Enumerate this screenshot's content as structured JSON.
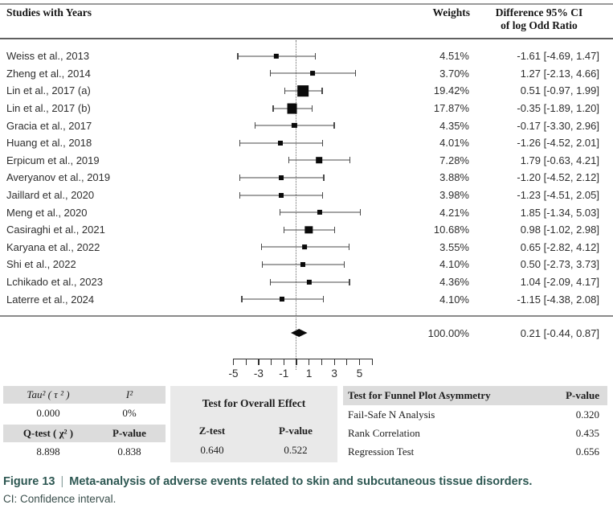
{
  "header": {
    "studies_col": "Studies with Years",
    "weights_col": "Weights",
    "diff_col_line1": "Difference 95% CI",
    "diff_col_line2": "of log Odd Ratio"
  },
  "chart_data": {
    "type": "forest",
    "effect_measure": "Difference of log Odd Ratio",
    "x_axis": {
      "min": -5,
      "max": 6,
      "tick_step": 1,
      "labeled_ticks": [
        -5,
        -3,
        -1,
        1,
        3,
        5
      ],
      "zero_reference_line": 0
    },
    "studies": [
      {
        "name": "Weiss et  al., 2013",
        "weight_pct": 4.51,
        "weight": "4.51%",
        "estimate": -1.61,
        "ci_low": -4.69,
        "ci_high": 1.47,
        "ci_label": "-1.61 [-4.69, 1.47]"
      },
      {
        "name": "Zheng et al., 2014",
        "weight_pct": 3.7,
        "weight": "3.70%",
        "estimate": 1.27,
        "ci_low": -2.13,
        "ci_high": 4.66,
        "ci_label": "1.27 [-2.13, 4.66]"
      },
      {
        "name": "Lin et al., 2017 (a)",
        "weight_pct": 19.42,
        "weight": "19.42%",
        "estimate": 0.51,
        "ci_low": -0.97,
        "ci_high": 1.99,
        "ci_label": "0.51 [-0.97, 1.99]"
      },
      {
        "name": "Lin et al., 2017 (b)",
        "weight_pct": 17.87,
        "weight": "17.87%",
        "estimate": -0.35,
        "ci_low": -1.89,
        "ci_high": 1.2,
        "ci_label": "-0.35 [-1.89, 1.20]"
      },
      {
        "name": "Gracia et al., 2017",
        "weight_pct": 4.35,
        "weight": "4.35%",
        "estimate": -0.17,
        "ci_low": -3.3,
        "ci_high": 2.96,
        "ci_label": "-0.17 [-3.30, 2.96]"
      },
      {
        "name": "Huang et al., 2018",
        "weight_pct": 4.01,
        "weight": "4.01%",
        "estimate": -1.26,
        "ci_low": -4.52,
        "ci_high": 2.01,
        "ci_label": "-1.26 [-4.52, 2.01]"
      },
      {
        "name": "Erpicum et al., 2019",
        "weight_pct": 7.28,
        "weight": "7.28%",
        "estimate": 1.79,
        "ci_low": -0.63,
        "ci_high": 4.21,
        "ci_label": "1.79 [-0.63, 4.21]"
      },
      {
        "name": "Averyanov et al., 2019",
        "weight_pct": 3.88,
        "weight": "3.88%",
        "estimate": -1.2,
        "ci_low": -4.52,
        "ci_high": 2.12,
        "ci_label": "-1.20 [-4.52, 2.12]"
      },
      {
        "name": "Jaillard et al., 2020",
        "weight_pct": 3.98,
        "weight": "3.98%",
        "estimate": -1.23,
        "ci_low": -4.51,
        "ci_high": 2.05,
        "ci_label": "-1.23 [-4.51, 2.05]"
      },
      {
        "name": "Meng et al., 2020",
        "weight_pct": 4.21,
        "weight": "4.21%",
        "estimate": 1.85,
        "ci_low": -1.34,
        "ci_high": 5.03,
        "ci_label": "1.85 [-1.34, 5.03]"
      },
      {
        "name": "Casiraghi  et al., 2021",
        "weight_pct": 10.68,
        "weight": "10.68%",
        "estimate": 0.98,
        "ci_low": -1.02,
        "ci_high": 2.98,
        "ci_label": "0.98 [-1.02, 2.98]"
      },
      {
        "name": "Karyana et al., 2022",
        "weight_pct": 3.55,
        "weight": "3.55%",
        "estimate": 0.65,
        "ci_low": -2.82,
        "ci_high": 4.12,
        "ci_label": "0.65 [-2.82, 4.12]"
      },
      {
        "name": "Shi et al., 2022",
        "weight_pct": 4.1,
        "weight": "4.10%",
        "estimate": 0.5,
        "ci_low": -2.73,
        "ci_high": 3.73,
        "ci_label": "0.50 [-2.73, 3.73]"
      },
      {
        "name": "Lchikado et al., 2023",
        "weight_pct": 4.36,
        "weight": "4.36%",
        "estimate": 1.04,
        "ci_low": -2.09,
        "ci_high": 4.17,
        "ci_label": "1.04 [-2.09, 4.17]"
      },
      {
        "name": "Laterre et al., 2024",
        "weight_pct": 4.1,
        "weight": "4.10%",
        "estimate": -1.15,
        "ci_low": -4.38,
        "ci_high": 2.08,
        "ci_label": "-1.15 [-4.38, 2.08]"
      }
    ],
    "overall": {
      "weight": "100.00%",
      "estimate": 0.21,
      "ci_low": -0.44,
      "ci_high": 0.87,
      "ci_label": "0.21 [-0.44, 0.87]"
    }
  },
  "stats": {
    "tau2_label": "Tau² ( τ ² )",
    "i2_label": "I²",
    "tau2_value": "0.000",
    "i2_value": "0%",
    "qtest_label": "Q-test ( χ² )",
    "q_p_label": "P-value",
    "qtest_value": "8.898",
    "q_p_value": "0.838",
    "overall_effect_title": "Test for Overall Effect",
    "ztest_label": "Z-test",
    "z_p_label": "P-value",
    "ztest_value": "0.640",
    "z_p_value": "0.522",
    "funnel_title": "Test for Funnel Plot Asymmetry",
    "funnel_p_label": "P-value",
    "funnel_rows": [
      {
        "label": "Fail-Safe N Analysis",
        "p": "0.320"
      },
      {
        "label": "Rank Correlation",
        "p": "0.435"
      },
      {
        "label": "Regression Test",
        "p": "0.656"
      }
    ]
  },
  "caption": {
    "figure_label": "Figure 13",
    "separator": "|",
    "title": "Meta-analysis of adverse events related to skin and subcutaneous tissue disorders.",
    "note": "CI: Confidence interval."
  },
  "colors": {
    "marker": "#0a0a0a",
    "whisker": "#4a4a4a",
    "table_band": "#dcdcdc",
    "middle_block": "#e9e9e9",
    "caption_accent": "#2d5752"
  }
}
